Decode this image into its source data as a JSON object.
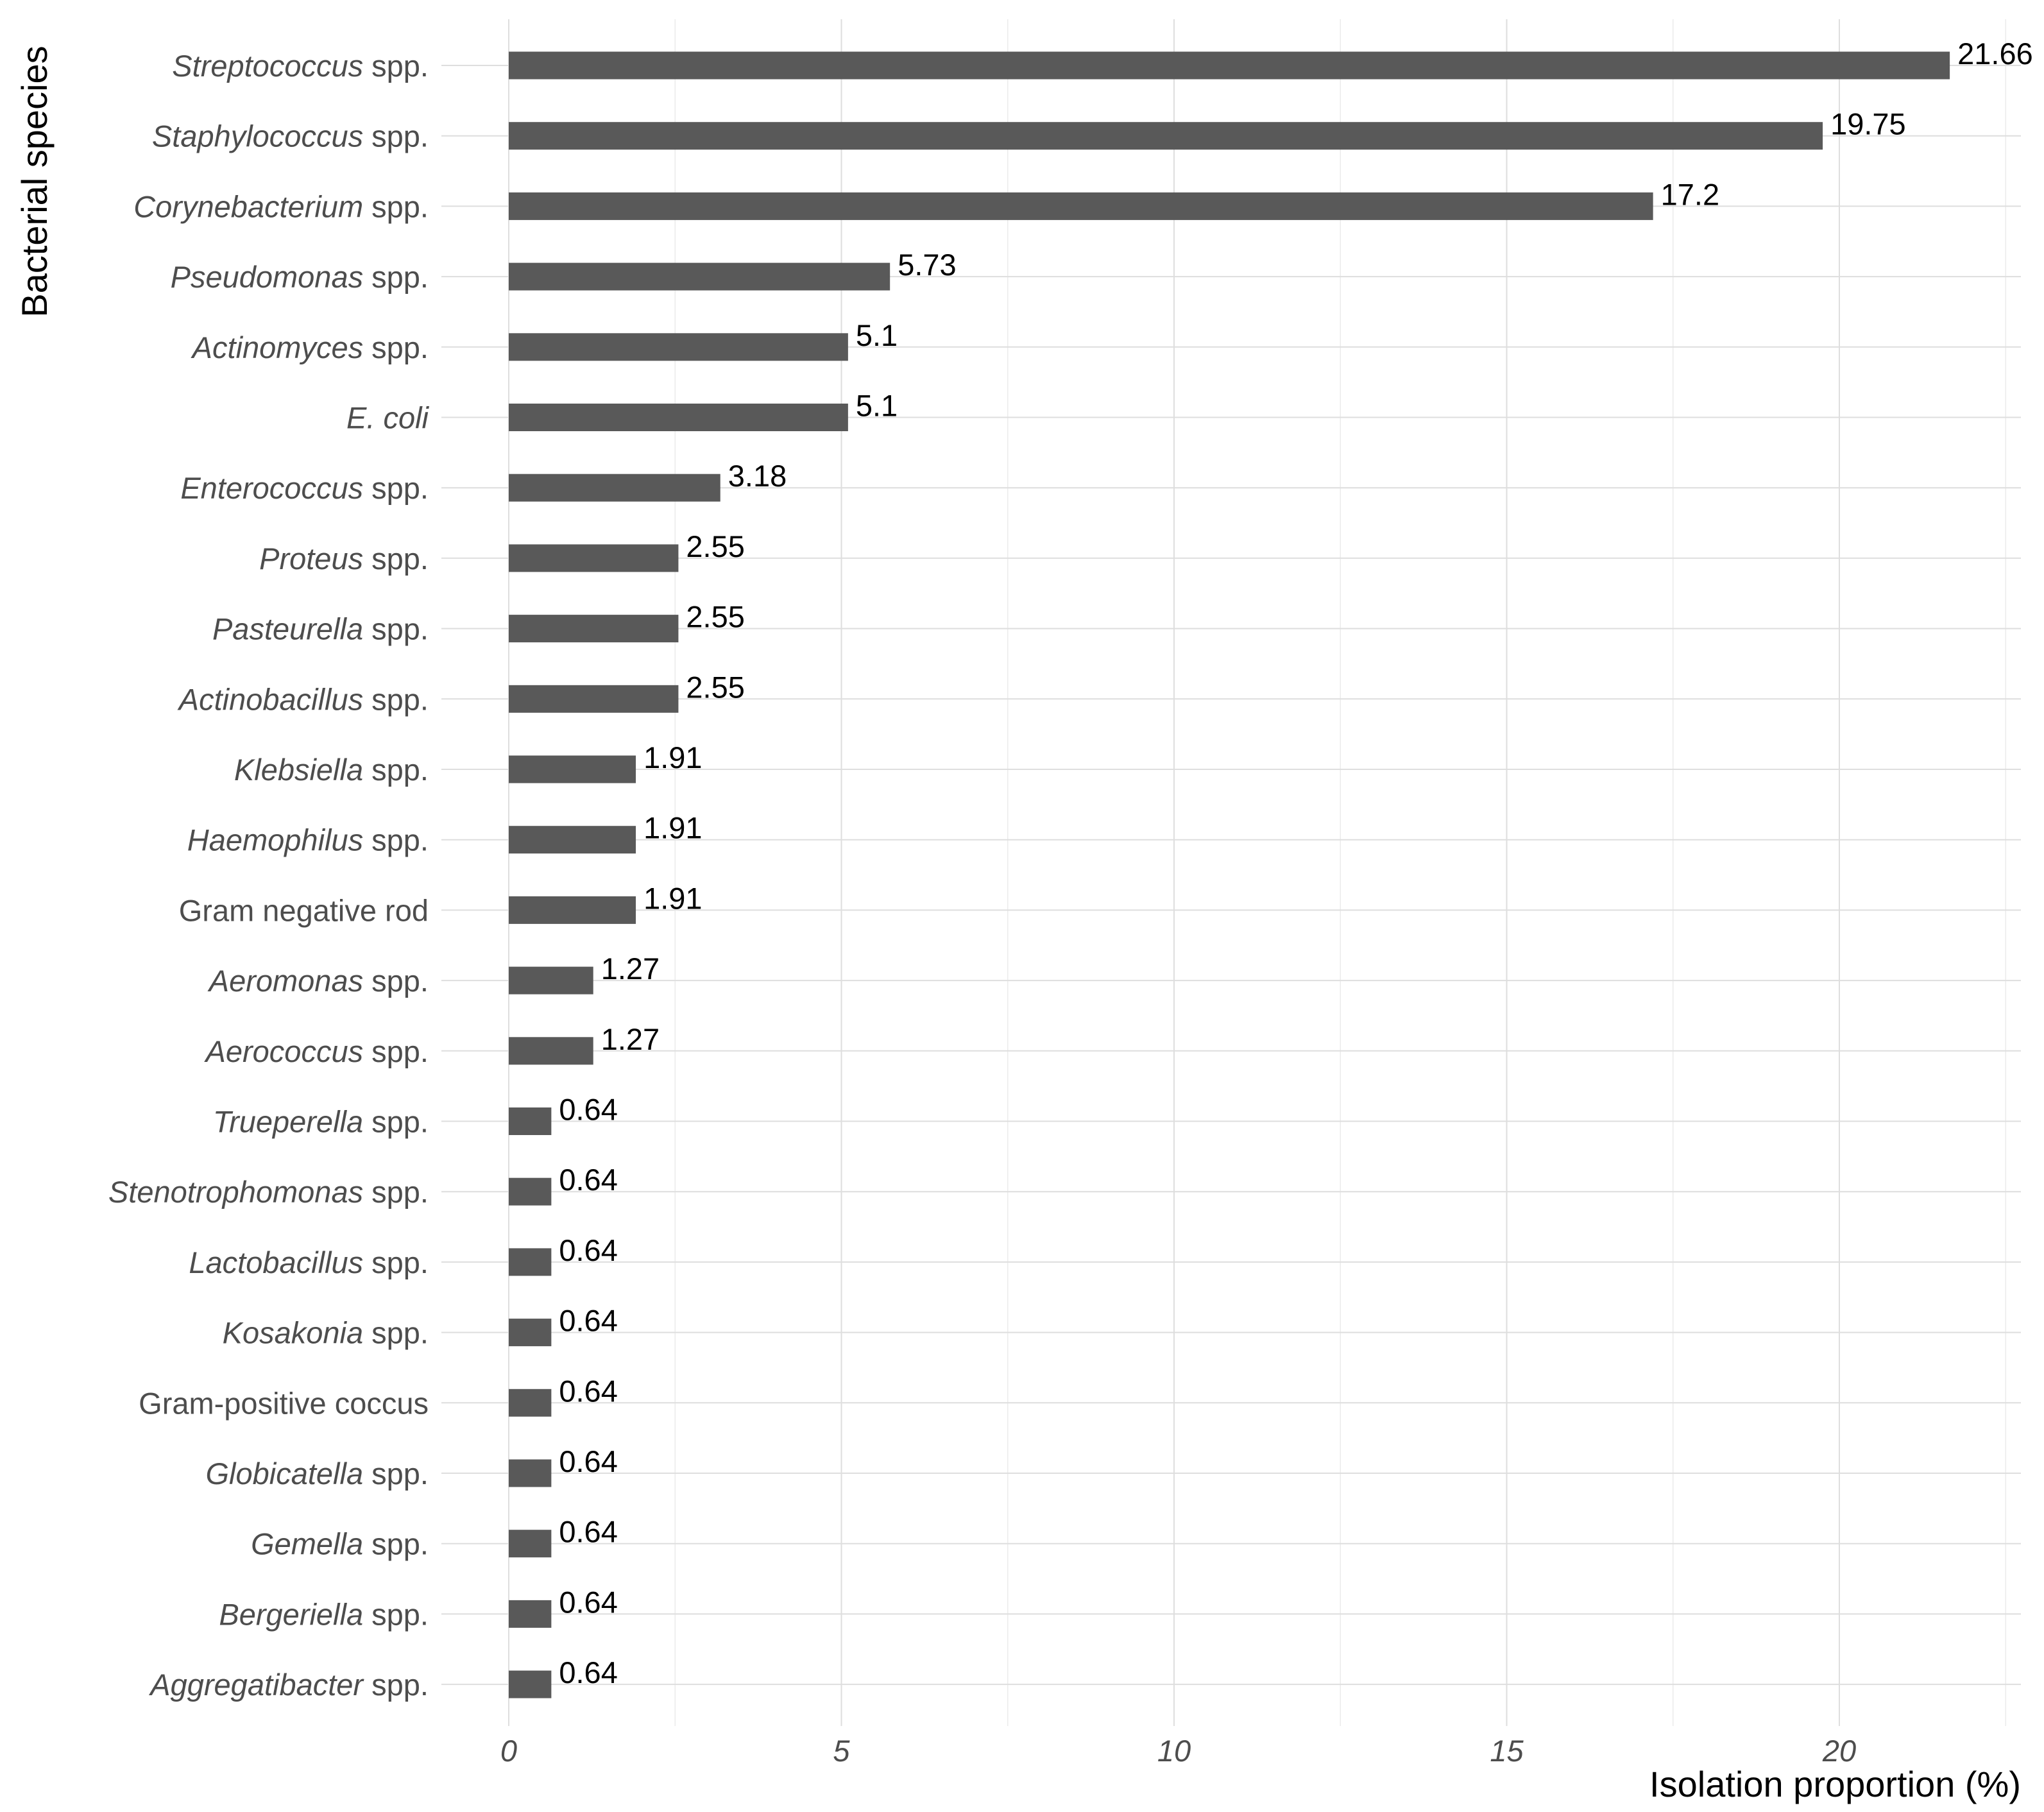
{
  "colors": {
    "bar": "#595959",
    "grid_major": "#dedede",
    "grid_minor": "#ebebeb",
    "category_text": "#4d4d4d",
    "label_text": "#000000"
  },
  "chart_data": {
    "type": "bar",
    "orientation": "horizontal",
    "title": "",
    "xlabel": "Isolation proportion (%)",
    "ylabel": "Bacterial species",
    "xlim": [
      0,
      22.5
    ],
    "xticks": [
      0,
      5,
      10,
      15,
      20
    ],
    "x_tick_labels": [
      "0",
      "5",
      "10",
      "15",
      "20"
    ],
    "grid": true,
    "legend": "none",
    "categories": [
      {
        "name": "Streptococcus",
        "suffix": "spp.",
        "value": 21.66,
        "label": "21.66"
      },
      {
        "name": "Staphylococcus",
        "suffix": "spp.",
        "value": 19.75,
        "label": "19.75"
      },
      {
        "name": "Corynebacterium",
        "suffix": "spp.",
        "value": 17.2,
        "label": "17.2"
      },
      {
        "name": "Pseudomonas",
        "suffix": "spp.",
        "value": 5.73,
        "label": "5.73"
      },
      {
        "name": "Actinomyces",
        "suffix": "spp.",
        "value": 5.1,
        "label": "5.1"
      },
      {
        "name": "E. coli",
        "suffix": "",
        "value": 5.1,
        "label": "5.1"
      },
      {
        "name": "Enterococcus",
        "suffix": "spp.",
        "value": 3.18,
        "label": "3.18"
      },
      {
        "name": "Proteus",
        "suffix": "spp.",
        "value": 2.55,
        "label": "2.55"
      },
      {
        "name": "Pasteurella",
        "suffix": "spp.",
        "value": 2.55,
        "label": "2.55"
      },
      {
        "name": "Actinobacillus",
        "suffix": "spp.",
        "value": 2.55,
        "label": "2.55"
      },
      {
        "name": "Klebsiella",
        "suffix": "spp.",
        "value": 1.91,
        "label": "1.91"
      },
      {
        "name": "Haemophilus",
        "suffix": "spp.",
        "value": 1.91,
        "label": "1.91"
      },
      {
        "name": "",
        "suffix": "Gram negative rod",
        "value": 1.91,
        "label": "1.91"
      },
      {
        "name": "Aeromonas",
        "suffix": "spp.",
        "value": 1.27,
        "label": "1.27"
      },
      {
        "name": "Aerococcus",
        "suffix": "spp.",
        "value": 1.27,
        "label": "1.27"
      },
      {
        "name": "Trueperella",
        "suffix": "spp.",
        "value": 0.64,
        "label": "0.64"
      },
      {
        "name": "Stenotrophomonas",
        "suffix": "spp.",
        "value": 0.64,
        "label": "0.64"
      },
      {
        "name": "Lactobacillus",
        "suffix": "spp.",
        "value": 0.64,
        "label": "0.64"
      },
      {
        "name": "Kosakonia",
        "suffix": "spp.",
        "value": 0.64,
        "label": "0.64"
      },
      {
        "name": "",
        "suffix": "Gram-positive coccus",
        "value": 0.64,
        "label": "0.64"
      },
      {
        "name": "Globicatella",
        "suffix": "spp.",
        "value": 0.64,
        "label": "0.64"
      },
      {
        "name": "Gemella",
        "suffix": "spp.",
        "value": 0.64,
        "label": "0.64"
      },
      {
        "name": "Bergeriella",
        "suffix": "spp.",
        "value": 0.64,
        "label": "0.64"
      },
      {
        "name": "Aggregatibacter",
        "suffix": "spp.",
        "value": 0.64,
        "label": "0.64"
      }
    ]
  }
}
